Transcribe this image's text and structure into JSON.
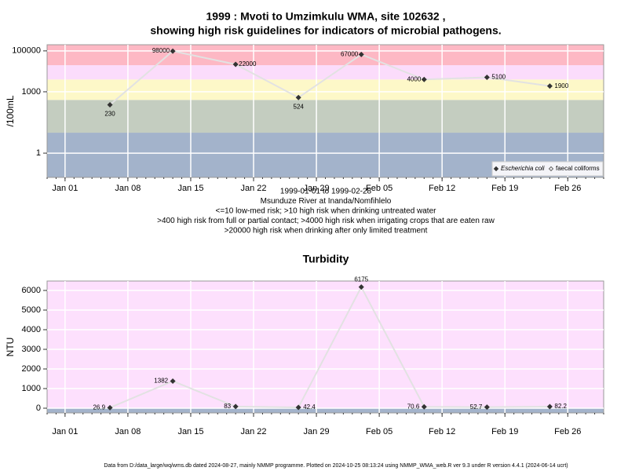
{
  "chart_data": [
    {
      "type": "scatter",
      "title": [
        "1999 : Mvoti to Umzimkulu WMA, site 102632 ,",
        "showing high risk guidelines for indicators of microbial pathogens."
      ],
      "y_label": "/100mL",
      "log_y": true,
      "grid": true,
      "x": [
        "1999-01-06",
        "1999-01-13",
        "1999-01-20",
        "1999-01-27",
        "1999-02-03",
        "1999-02-10",
        "1999-02-17",
        "1999-02-24"
      ],
      "series": [
        {
          "name": "Escherichia coli",
          "color": "#333333",
          "values": [
            230,
            98000,
            22000,
            524,
            67000,
            4000,
            5100,
            1900
          ]
        },
        {
          "name": "faecal coliforms",
          "color": "#666666",
          "values": [
            null,
            null,
            null,
            null,
            null,
            null,
            null,
            null
          ]
        }
      ],
      "xlim": [
        "1998-12-30",
        "1999-03-02"
      ],
      "xticks": [
        {
          "value": "1999-01-01",
          "label": "Jan 01"
        },
        {
          "value": "1999-01-08",
          "label": "Jan 08"
        },
        {
          "value": "1999-01-15",
          "label": "Jan 15"
        },
        {
          "value": "1999-01-22",
          "label": "Jan 22"
        },
        {
          "value": "1999-01-29",
          "label": "Jan 29"
        },
        {
          "value": "1999-02-05",
          "label": "Feb 05"
        },
        {
          "value": "1999-02-12",
          "label": "Feb 12"
        },
        {
          "value": "1999-02-19",
          "label": "Feb 19"
        },
        {
          "value": "1999-02-26",
          "label": "Feb 26"
        }
      ],
      "ylim": [
        0.065,
        200000
      ],
      "yticks": [
        1,
        1000,
        100000
      ],
      "bands": [
        {
          "from": 0.065,
          "to": 10,
          "color": "#a3b3cb"
        },
        {
          "from": 10,
          "to": 400,
          "color": "#c4cdc0"
        },
        {
          "from": 400,
          "to": 4000,
          "color": "#fdf8c8"
        },
        {
          "from": 4000,
          "to": 20000,
          "color": "#fbdcfb"
        },
        {
          "from": 20000,
          "to": 200000,
          "color": "#fdb8c4"
        }
      ],
      "legend": "bottom-right",
      "annotations": [
        "1999-01-01 to 1999-02-28",
        "Msunduze River at Inanda/Nomfihlelo",
        "<=10 low-med risk; >10 high risk when drinking untreated water",
        ">400 high risk from full or partial contact; >4000 high risk when irrigating crops that are eaten raw",
        ">20000 high risk when drinking after only limited treatment"
      ]
    },
    {
      "type": "scatter",
      "title": [
        "Turbidity"
      ],
      "y_label": "NTU",
      "log_y": false,
      "grid": true,
      "x": [
        "1999-01-06",
        "1999-01-13",
        "1999-01-20",
        "1999-01-27",
        "1999-02-03",
        "1999-02-10",
        "1999-02-17",
        "1999-02-24"
      ],
      "series": [
        {
          "name": "Turbidity",
          "color": "#333333",
          "values": [
            26.9,
            1382,
            83,
            42.4,
            6175,
            70.6,
            52.7,
            82.2
          ]
        }
      ],
      "xlim": [
        "1998-12-30",
        "1999-03-02"
      ],
      "xticks": [
        {
          "value": "1999-01-01",
          "label": "Jan 01"
        },
        {
          "value": "1999-01-08",
          "label": "Jan 08"
        },
        {
          "value": "1999-01-15",
          "label": "Jan 15"
        },
        {
          "value": "1999-01-22",
          "label": "Jan 22"
        },
        {
          "value": "1999-01-29",
          "label": "Jan 29"
        },
        {
          "value": "1999-02-05",
          "label": "Feb 05"
        },
        {
          "value": "1999-02-12",
          "label": "Feb 12"
        },
        {
          "value": "1999-02-19",
          "label": "Feb 19"
        },
        {
          "value": "1999-02-26",
          "label": "Feb 26"
        }
      ],
      "ylim": [
        -240,
        6480
      ],
      "yticks": [
        0,
        1000,
        2000,
        3000,
        4000,
        5000,
        6000
      ],
      "bands": [
        {
          "from": -240,
          "to": 0,
          "color": "#a3b3cb"
        },
        {
          "from": 0,
          "to": 6480,
          "color": "#fde0fd"
        }
      ]
    }
  ],
  "footer": "Data from D:/data_large/wq/wms.db dated 2024-08-27, mainly NMMP programme. Plotted on 2024-10-25 08:13:24 using NMMP_WMA_web.R ver 9.3 under R version 4.4.1 (2024-06-14 ucrt)"
}
